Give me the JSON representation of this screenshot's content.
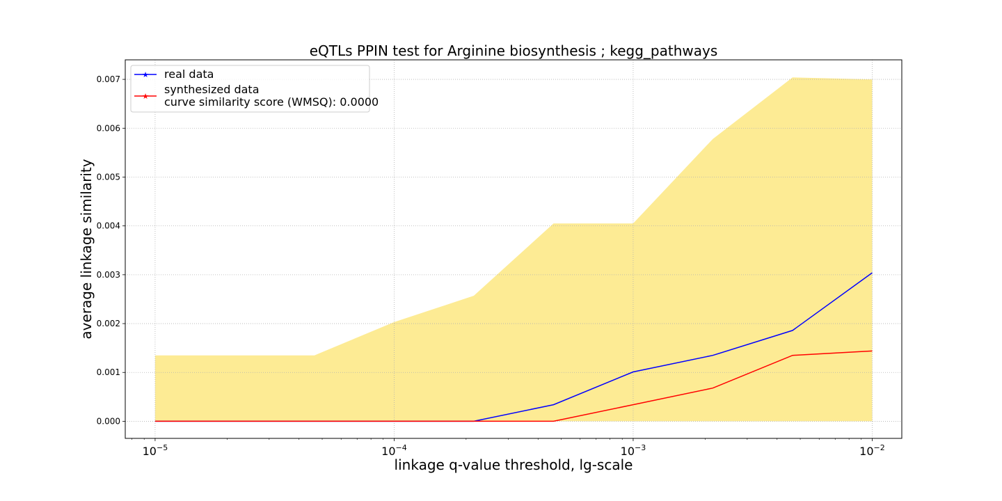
{
  "chart_data": {
    "type": "line",
    "title": "eQTLs PPIN test for Arginine biosynthesis ; kegg_pathways",
    "xlabel": "linkage q-value threshold, lg-scale",
    "ylabel": "average linkage similarity",
    "xscale": "log",
    "xlim": [
      7.5e-06,
      0.0133
    ],
    "ylim": [
      -0.00035,
      0.0074
    ],
    "grid": true,
    "legend_position": "upper-left",
    "x": [
      1e-05,
      2.154e-05,
      4.642e-05,
      0.0001,
      0.0002154,
      0.0004642,
      0.001,
      0.002154,
      0.004642,
      0.01
    ],
    "x_ticks": [
      {
        "value": 1e-05,
        "base": "10",
        "exp": "−5"
      },
      {
        "value": 0.0001,
        "base": "10",
        "exp": "−4"
      },
      {
        "value": 0.001,
        "base": "10",
        "exp": "−3"
      },
      {
        "value": 0.01,
        "base": "10",
        "exp": "−2"
      }
    ],
    "y_ticks": [
      "0.000",
      "0.001",
      "0.002",
      "0.003",
      "0.004",
      "0.005",
      "0.006",
      "0.007"
    ],
    "band": {
      "color": "#fdeb94",
      "lower": [
        0,
        0,
        0,
        0,
        0,
        0,
        0,
        0,
        0,
        0
      ],
      "upper": [
        0.00135,
        0.00135,
        0.00135,
        0.00203,
        0.00257,
        0.00405,
        0.00405,
        0.00578,
        0.00704,
        0.007
      ]
    },
    "series": [
      {
        "name": "real data",
        "color": "#0000ff",
        "values": [
          0,
          0,
          0,
          0,
          0,
          0.00034,
          0.00101,
          0.00135,
          0.00186,
          0.00304
        ]
      },
      {
        "name": "synthesized data",
        "extra_label": "curve similarity score (WMSQ): 0.0000",
        "color": "#ff0000",
        "values": [
          0,
          0,
          0,
          0,
          0,
          0,
          0.00034,
          0.00068,
          0.00135,
          0.00144
        ]
      }
    ]
  }
}
